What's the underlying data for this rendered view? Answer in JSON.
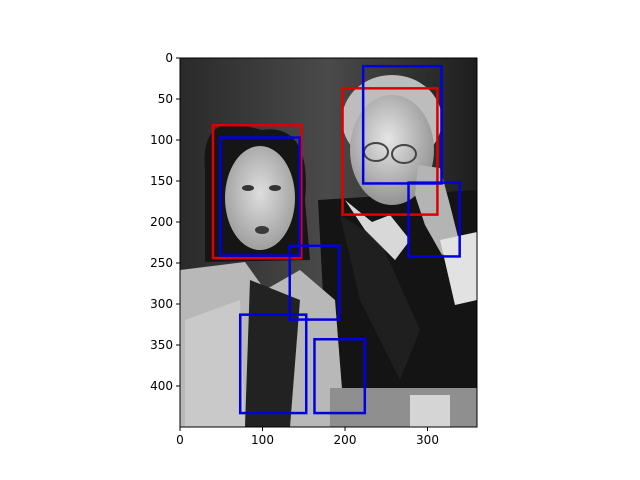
{
  "chart_data": {
    "type": "image-with-boxes",
    "xlim": [
      0,
      360
    ],
    "ylim": [
      450,
      0
    ],
    "xticks": [
      0,
      100,
      200,
      300
    ],
    "yticks": [
      0,
      50,
      100,
      150,
      200,
      250,
      300,
      350,
      400
    ],
    "box_colors": {
      "red": "#e00000",
      "blue": "#0000e0"
    },
    "boxes": [
      {
        "color": "red",
        "x0": 40,
        "y0": 82,
        "x1": 147,
        "y1": 244
      },
      {
        "color": "red",
        "x0": 197,
        "y0": 37,
        "x1": 312,
        "y1": 191
      },
      {
        "color": "blue",
        "x0": 49,
        "y0": 97,
        "x1": 145,
        "y1": 241
      },
      {
        "color": "blue",
        "x0": 222,
        "y0": 10,
        "x1": 317,
        "y1": 153
      },
      {
        "color": "blue",
        "x0": 277,
        "y0": 152,
        "x1": 339,
        "y1": 242
      },
      {
        "color": "blue",
        "x0": 133,
        "y0": 229,
        "x1": 193,
        "y1": 319
      },
      {
        "color": "blue",
        "x0": 73,
        "y0": 313,
        "x1": 153,
        "y1": 433
      },
      {
        "color": "blue",
        "x0": 163,
        "y0": 343,
        "x1": 224,
        "y1": 433
      }
    ]
  }
}
